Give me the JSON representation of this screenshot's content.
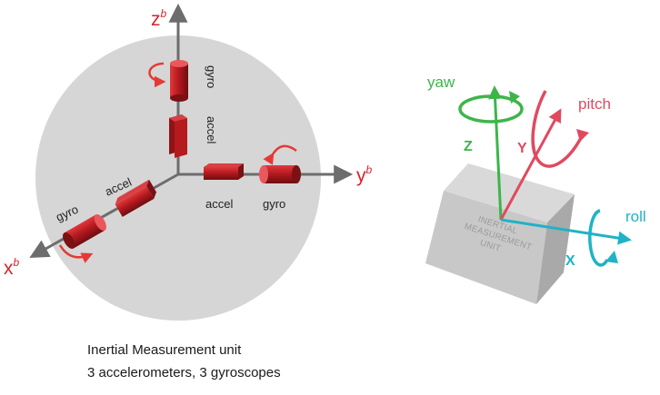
{
  "left": {
    "axes": {
      "z": {
        "label": "z",
        "sup": "b"
      },
      "y": {
        "label": "y",
        "sup": "b"
      },
      "x": {
        "label": "x",
        "sup": "b"
      }
    },
    "sensors": {
      "z_gyro": "gyro",
      "z_accel": "accel",
      "y_accel": "accel",
      "y_gyro": "gyro",
      "x_accel": "accel",
      "x_gyro": "gyro"
    },
    "caption": {
      "line1": "Inertial Measurement unit",
      "line2": "3 accelerometers, 3 gyroscopes"
    }
  },
  "right": {
    "rotations": {
      "yaw": "yaw",
      "pitch": "pitch",
      "roll": "roll"
    },
    "axes": {
      "z": "Z",
      "y": "Y",
      "x": "X"
    },
    "box_text": [
      "INERTIAL",
      "MEASUREMENT",
      "UNIT"
    ],
    "colors": {
      "yaw": "#3db54a",
      "pitch": "#e04a5f",
      "roll": "#1fb3c6",
      "sensor": "#b51a1f"
    }
  }
}
